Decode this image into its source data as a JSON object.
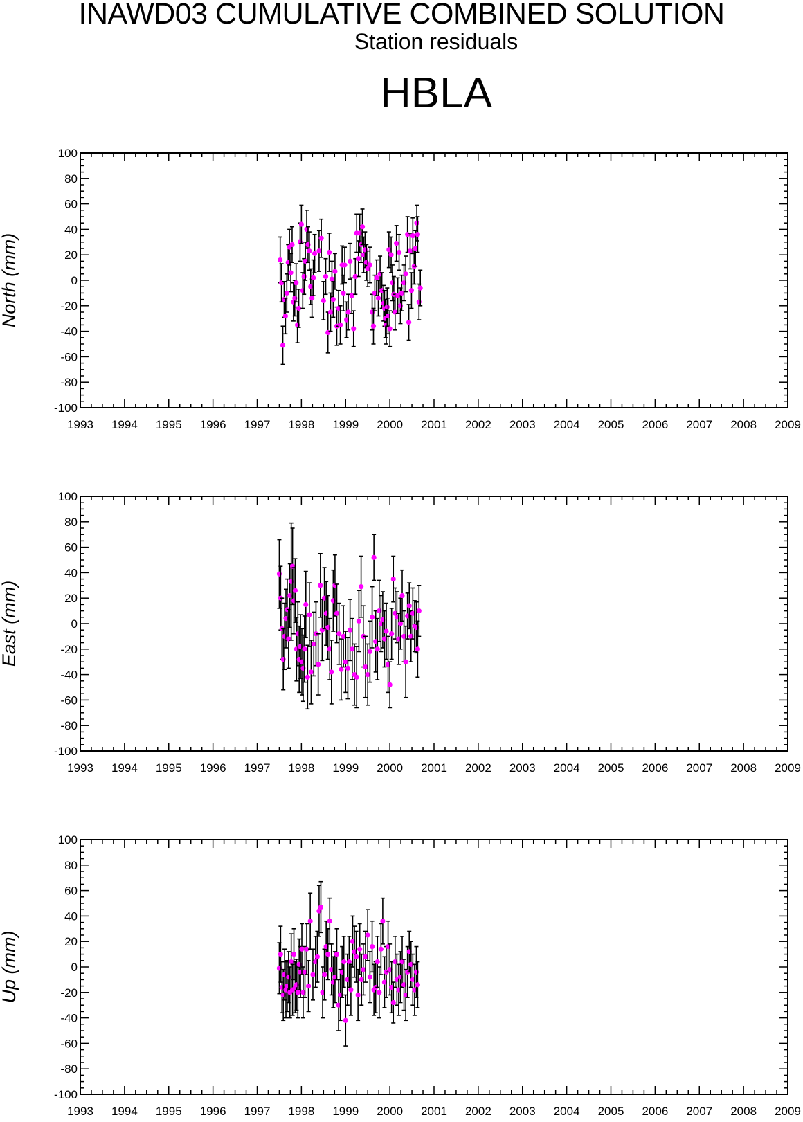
{
  "header": {
    "title": "INAWD03 CUMULATIVE COMBINED SOLUTION",
    "subtitle": "Station residuals",
    "station": "HBLA"
  },
  "colors": {
    "point": "#ff00ff",
    "errorbar": "#000000",
    "axis": "#000000"
  },
  "chart_data": [
    {
      "type": "scatter",
      "ylabel": "North (mm)",
      "xlim": [
        1993,
        2009
      ],
      "ylim": [
        -100,
        100
      ],
      "xticks": [
        "1993",
        "1994",
        "1995",
        "1996",
        "1997",
        "1998",
        "1999",
        "2000",
        "2001",
        "2002",
        "2003",
        "2004",
        "2005",
        "2006",
        "2007",
        "2008",
        "2009"
      ],
      "yticks": [
        "100",
        "80",
        "60",
        "40",
        "20",
        "0",
        "-20",
        "-40",
        "-60",
        "-80",
        "-100"
      ],
      "grid": false,
      "points": [
        [
          1997.52,
          16,
          18
        ],
        [
          1997.55,
          -2,
          15
        ],
        [
          1997.58,
          -51,
          15
        ],
        [
          1997.61,
          -15,
          14
        ],
        [
          1997.64,
          -28,
          14
        ],
        [
          1997.67,
          -10,
          15
        ],
        [
          1997.7,
          14,
          14
        ],
        [
          1997.73,
          26,
          14
        ],
        [
          1997.76,
          6,
          15
        ],
        [
          1997.79,
          28,
          14
        ],
        [
          1997.82,
          -17,
          15
        ],
        [
          1997.85,
          -14,
          14
        ],
        [
          1997.88,
          -2,
          15
        ],
        [
          1997.91,
          -35,
          14
        ],
        [
          1997.94,
          -22,
          15
        ],
        [
          1997.97,
          30,
          15
        ],
        [
          1998.0,
          44,
          15
        ],
        [
          1998.03,
          -8,
          14
        ],
        [
          1998.06,
          3,
          14
        ],
        [
          1998.09,
          15,
          15
        ],
        [
          1998.12,
          40,
          15
        ],
        [
          1998.15,
          28,
          14
        ],
        [
          1998.18,
          23,
          15
        ],
        [
          1998.21,
          -5,
          14
        ],
        [
          1998.24,
          -14,
          15
        ],
        [
          1998.27,
          2,
          14
        ],
        [
          1998.3,
          21,
          15
        ],
        [
          1998.4,
          23,
          16
        ],
        [
          1998.45,
          33,
          15
        ],
        [
          1998.5,
          -16,
          15
        ],
        [
          1998.55,
          3,
          14
        ],
        [
          1998.6,
          -41,
          16
        ],
        [
          1998.63,
          22,
          15
        ],
        [
          1998.66,
          -25,
          15
        ],
        [
          1998.69,
          1,
          14
        ],
        [
          1998.72,
          -15,
          14
        ],
        [
          1998.76,
          7,
          14
        ],
        [
          1998.8,
          -36,
          15
        ],
        [
          1998.84,
          -22,
          14
        ],
        [
          1998.88,
          -35,
          15
        ],
        [
          1998.92,
          12,
          15
        ],
        [
          1998.95,
          -10,
          14
        ],
        [
          1998.98,
          12,
          14
        ],
        [
          1999.02,
          -31,
          14
        ],
        [
          1999.06,
          -25,
          14
        ],
        [
          1999.1,
          15,
          14
        ],
        [
          1999.14,
          -12,
          14
        ],
        [
          1999.18,
          -38,
          14
        ],
        [
          1999.22,
          3,
          14
        ],
        [
          1999.25,
          37,
          15
        ],
        [
          1999.29,
          17,
          14
        ],
        [
          1999.32,
          37,
          15
        ],
        [
          1999.35,
          28,
          14
        ],
        [
          1999.38,
          42,
          14
        ],
        [
          1999.41,
          20,
          14
        ],
        [
          1999.44,
          24,
          14
        ],
        [
          1999.47,
          14,
          14
        ],
        [
          1999.5,
          9,
          14
        ],
        [
          1999.55,
          12,
          14
        ],
        [
          1999.6,
          -25,
          14
        ],
        [
          1999.63,
          -36,
          14
        ],
        [
          1999.66,
          -10,
          14
        ],
        [
          1999.7,
          2,
          14
        ],
        [
          1999.74,
          -14,
          14
        ],
        [
          1999.78,
          5,
          14
        ],
        [
          1999.82,
          -8,
          14
        ],
        [
          1999.86,
          -18,
          14
        ],
        [
          1999.88,
          -22,
          14
        ],
        [
          1999.9,
          -30,
          15
        ],
        [
          1999.92,
          -35,
          15
        ],
        [
          1999.94,
          -21,
          15
        ],
        [
          1999.96,
          -28,
          14
        ],
        [
          1999.98,
          24,
          14
        ],
        [
          2000.0,
          -38,
          14
        ],
        [
          2000.03,
          20,
          14
        ],
        [
          2000.06,
          -2,
          14
        ],
        [
          2000.09,
          -11,
          14
        ],
        [
          2000.12,
          -25,
          14
        ],
        [
          2000.15,
          29,
          14
        ],
        [
          2000.18,
          -12,
          14
        ],
        [
          2000.21,
          22,
          14
        ],
        [
          2000.24,
          -20,
          14
        ],
        [
          2000.27,
          -10,
          14
        ],
        [
          2000.32,
          -2,
          14
        ],
        [
          2000.36,
          5,
          14
        ],
        [
          2000.4,
          36,
          14
        ],
        [
          2000.43,
          -33,
          14
        ],
        [
          2000.46,
          23,
          14
        ],
        [
          2000.49,
          -8,
          14
        ],
        [
          2000.52,
          35,
          14
        ],
        [
          2000.55,
          11,
          14
        ],
        [
          2000.58,
          25,
          14
        ],
        [
          2000.61,
          45,
          14
        ],
        [
          2000.63,
          36,
          14
        ],
        [
          2000.66,
          -17,
          14
        ],
        [
          2000.69,
          -6,
          14
        ]
      ]
    },
    {
      "type": "scatter",
      "ylabel": "East (mm)",
      "xlim": [
        1993,
        2009
      ],
      "ylim": [
        -100,
        100
      ],
      "xticks": [
        "1993",
        "1994",
        "1995",
        "1996",
        "1997",
        "1998",
        "1999",
        "2000",
        "2001",
        "2002",
        "2003",
        "2004",
        "2005",
        "2006",
        "2007",
        "2008",
        "2009"
      ],
      "yticks": [
        "100",
        "80",
        "60",
        "40",
        "20",
        "0",
        "-20",
        "-40",
        "-60",
        "-80",
        "-100"
      ],
      "grid": false,
      "points": [
        [
          1997.5,
          39,
          27
        ],
        [
          1997.53,
          20,
          25
        ],
        [
          1997.56,
          -4,
          24
        ],
        [
          1997.59,
          -28,
          24
        ],
        [
          1997.62,
          -10,
          26
        ],
        [
          1997.65,
          4,
          23
        ],
        [
          1997.68,
          11,
          24
        ],
        [
          1997.71,
          -12,
          23
        ],
        [
          1997.74,
          22,
          25
        ],
        [
          1997.77,
          33,
          46
        ],
        [
          1997.8,
          45,
          30
        ],
        [
          1997.83,
          18,
          26
        ],
        [
          1997.86,
          26,
          25
        ],
        [
          1997.89,
          -20,
          25
        ],
        [
          1997.92,
          -8,
          25
        ],
        [
          1997.95,
          -28,
          26
        ],
        [
          1997.98,
          -18,
          25
        ],
        [
          1998.01,
          -30,
          26
        ],
        [
          1998.04,
          -35,
          26
        ],
        [
          1998.07,
          -20,
          26
        ],
        [
          1998.1,
          15,
          26
        ],
        [
          1998.14,
          -42,
          25
        ],
        [
          1998.18,
          7,
          25
        ],
        [
          1998.22,
          -38,
          25
        ],
        [
          1998.28,
          -16,
          25
        ],
        [
          1998.33,
          -8,
          25
        ],
        [
          1998.38,
          -32,
          24
        ],
        [
          1998.43,
          30,
          25
        ],
        [
          1998.47,
          -5,
          24
        ],
        [
          1998.52,
          20,
          24
        ],
        [
          1998.56,
          8,
          25
        ],
        [
          1998.6,
          -3,
          25
        ],
        [
          1998.64,
          -20,
          24
        ],
        [
          1998.68,
          -38,
          25
        ],
        [
          1998.72,
          18,
          24
        ],
        [
          1998.76,
          30,
          24
        ],
        [
          1998.8,
          8,
          23
        ],
        [
          1998.85,
          -8,
          24
        ],
        [
          1998.9,
          -36,
          24
        ],
        [
          1998.95,
          -10,
          24
        ],
        [
          1999.0,
          -30,
          24
        ],
        [
          1999.05,
          -35,
          24
        ],
        [
          1999.1,
          -5,
          24
        ],
        [
          1999.15,
          -20,
          24
        ],
        [
          1999.2,
          -40,
          24
        ],
        [
          1999.25,
          -42,
          24
        ],
        [
          1999.3,
          2,
          24
        ],
        [
          1999.35,
          29,
          24
        ],
        [
          1999.4,
          -10,
          24
        ],
        [
          1999.45,
          -34,
          24
        ],
        [
          1999.5,
          -40,
          24
        ],
        [
          1999.55,
          -22,
          24
        ],
        [
          1999.6,
          5,
          24
        ],
        [
          1999.64,
          52,
          18
        ],
        [
          1999.68,
          -14,
          24
        ],
        [
          1999.72,
          -20,
          24
        ],
        [
          1999.76,
          10,
          24
        ],
        [
          1999.8,
          0,
          22
        ],
        [
          1999.84,
          3,
          22
        ],
        [
          1999.88,
          -12,
          22
        ],
        [
          1999.92,
          -6,
          22
        ],
        [
          1999.96,
          -32,
          22
        ],
        [
          2000.0,
          -48,
          18
        ],
        [
          2000.04,
          -8,
          20
        ],
        [
          2000.08,
          35,
          18
        ],
        [
          2000.12,
          8,
          20
        ],
        [
          2000.16,
          5,
          20
        ],
        [
          2000.2,
          -12,
          20
        ],
        [
          2000.24,
          0,
          20
        ],
        [
          2000.28,
          22,
          20
        ],
        [
          2000.32,
          -10,
          20
        ],
        [
          2000.36,
          -30,
          28
        ],
        [
          2000.4,
          6,
          18
        ],
        [
          2000.44,
          14,
          18
        ],
        [
          2000.48,
          -10,
          20
        ],
        [
          2000.52,
          8,
          20
        ],
        [
          2000.56,
          -2,
          20
        ],
        [
          2000.6,
          -3,
          20
        ],
        [
          2000.63,
          -20,
          22
        ],
        [
          2000.66,
          10,
          20
        ]
      ]
    },
    {
      "type": "scatter",
      "ylabel": "Up (mm)",
      "xlim": [
        1993,
        2009
      ],
      "ylim": [
        -100,
        100
      ],
      "xticks": [
        "1993",
        "1994",
        "1995",
        "1996",
        "1997",
        "1998",
        "1999",
        "2000",
        "2001",
        "2002",
        "2003",
        "2004",
        "2005",
        "2006",
        "2007",
        "2008",
        "2009"
      ],
      "yticks": [
        "100",
        "80",
        "60",
        "40",
        "20",
        "0",
        "-20",
        "-40",
        "-60",
        "-80",
        "-100"
      ],
      "grid": false,
      "points": [
        [
          1997.5,
          -1,
          20
        ],
        [
          1997.53,
          10,
          22
        ],
        [
          1997.56,
          -16,
          20
        ],
        [
          1997.59,
          -22,
          20
        ],
        [
          1997.62,
          -6,
          20
        ],
        [
          1997.65,
          -18,
          22
        ],
        [
          1997.68,
          -15,
          20
        ],
        [
          1997.71,
          -8,
          20
        ],
        [
          1997.74,
          -20,
          20
        ],
        [
          1997.77,
          4,
          22
        ],
        [
          1997.8,
          -18,
          20
        ],
        [
          1997.83,
          10,
          20
        ],
        [
          1997.86,
          -16,
          20
        ],
        [
          1997.89,
          -14,
          20
        ],
        [
          1997.92,
          -20,
          20
        ],
        [
          1997.95,
          2,
          20
        ],
        [
          1997.98,
          -4,
          20
        ],
        [
          1998.01,
          14,
          20
        ],
        [
          1998.04,
          -20,
          20
        ],
        [
          1998.08,
          -4,
          20
        ],
        [
          1998.12,
          14,
          20
        ],
        [
          1998.16,
          -15,
          20
        ],
        [
          1998.2,
          36,
          22
        ],
        [
          1998.26,
          -6,
          20
        ],
        [
          1998.32,
          4,
          20
        ],
        [
          1998.36,
          8,
          20
        ],
        [
          1998.4,
          44,
          20
        ],
        [
          1998.44,
          47,
          20
        ],
        [
          1998.48,
          -20,
          20
        ],
        [
          1998.52,
          -6,
          20
        ],
        [
          1998.56,
          16,
          20
        ],
        [
          1998.6,
          10,
          20
        ],
        [
          1998.64,
          36,
          18
        ],
        [
          1998.68,
          -2,
          20
        ],
        [
          1998.72,
          -12,
          20
        ],
        [
          1998.76,
          -8,
          20
        ],
        [
          1998.8,
          10,
          20
        ],
        [
          1998.84,
          -30,
          20
        ],
        [
          1998.88,
          -22,
          20
        ],
        [
          1998.92,
          -4,
          20
        ],
        [
          1998.96,
          4,
          20
        ],
        [
          1999.0,
          -42,
          20
        ],
        [
          1999.04,
          -10,
          20
        ],
        [
          1999.08,
          4,
          20
        ],
        [
          1999.12,
          -18,
          20
        ],
        [
          1999.16,
          20,
          20
        ],
        [
          1999.2,
          12,
          20
        ],
        [
          1999.24,
          8,
          20
        ],
        [
          1999.28,
          -22,
          20
        ],
        [
          1999.32,
          14,
          20
        ],
        [
          1999.36,
          -10,
          20
        ],
        [
          1999.4,
          -2,
          20
        ],
        [
          1999.45,
          8,
          20
        ],
        [
          1999.5,
          25,
          20
        ],
        [
          1999.55,
          -8,
          20
        ],
        [
          1999.6,
          16,
          20
        ],
        [
          1999.64,
          -18,
          20
        ],
        [
          1999.68,
          -16,
          20
        ],
        [
          1999.72,
          4,
          20
        ],
        [
          1999.76,
          -20,
          20
        ],
        [
          1999.8,
          14,
          20
        ],
        [
          1999.84,
          36,
          18
        ],
        [
          1999.88,
          -12,
          20
        ],
        [
          1999.92,
          -4,
          20
        ],
        [
          1999.96,
          16,
          20
        ],
        [
          2000.0,
          -2,
          20
        ],
        [
          2000.04,
          -16,
          20
        ],
        [
          2000.08,
          -28,
          16
        ],
        [
          2000.12,
          4,
          20
        ],
        [
          2000.16,
          -10,
          20
        ],
        [
          2000.2,
          -18,
          20
        ],
        [
          2000.24,
          -8,
          20
        ],
        [
          2000.28,
          4,
          20
        ],
        [
          2000.32,
          -14,
          20
        ],
        [
          2000.36,
          -22,
          20
        ],
        [
          2000.4,
          -4,
          20
        ],
        [
          2000.44,
          12,
          16
        ],
        [
          2000.48,
          2,
          18
        ],
        [
          2000.52,
          -10,
          20
        ],
        [
          2000.56,
          -18,
          20
        ],
        [
          2000.6,
          -4,
          20
        ],
        [
          2000.63,
          -14,
          18
        ]
      ]
    }
  ]
}
